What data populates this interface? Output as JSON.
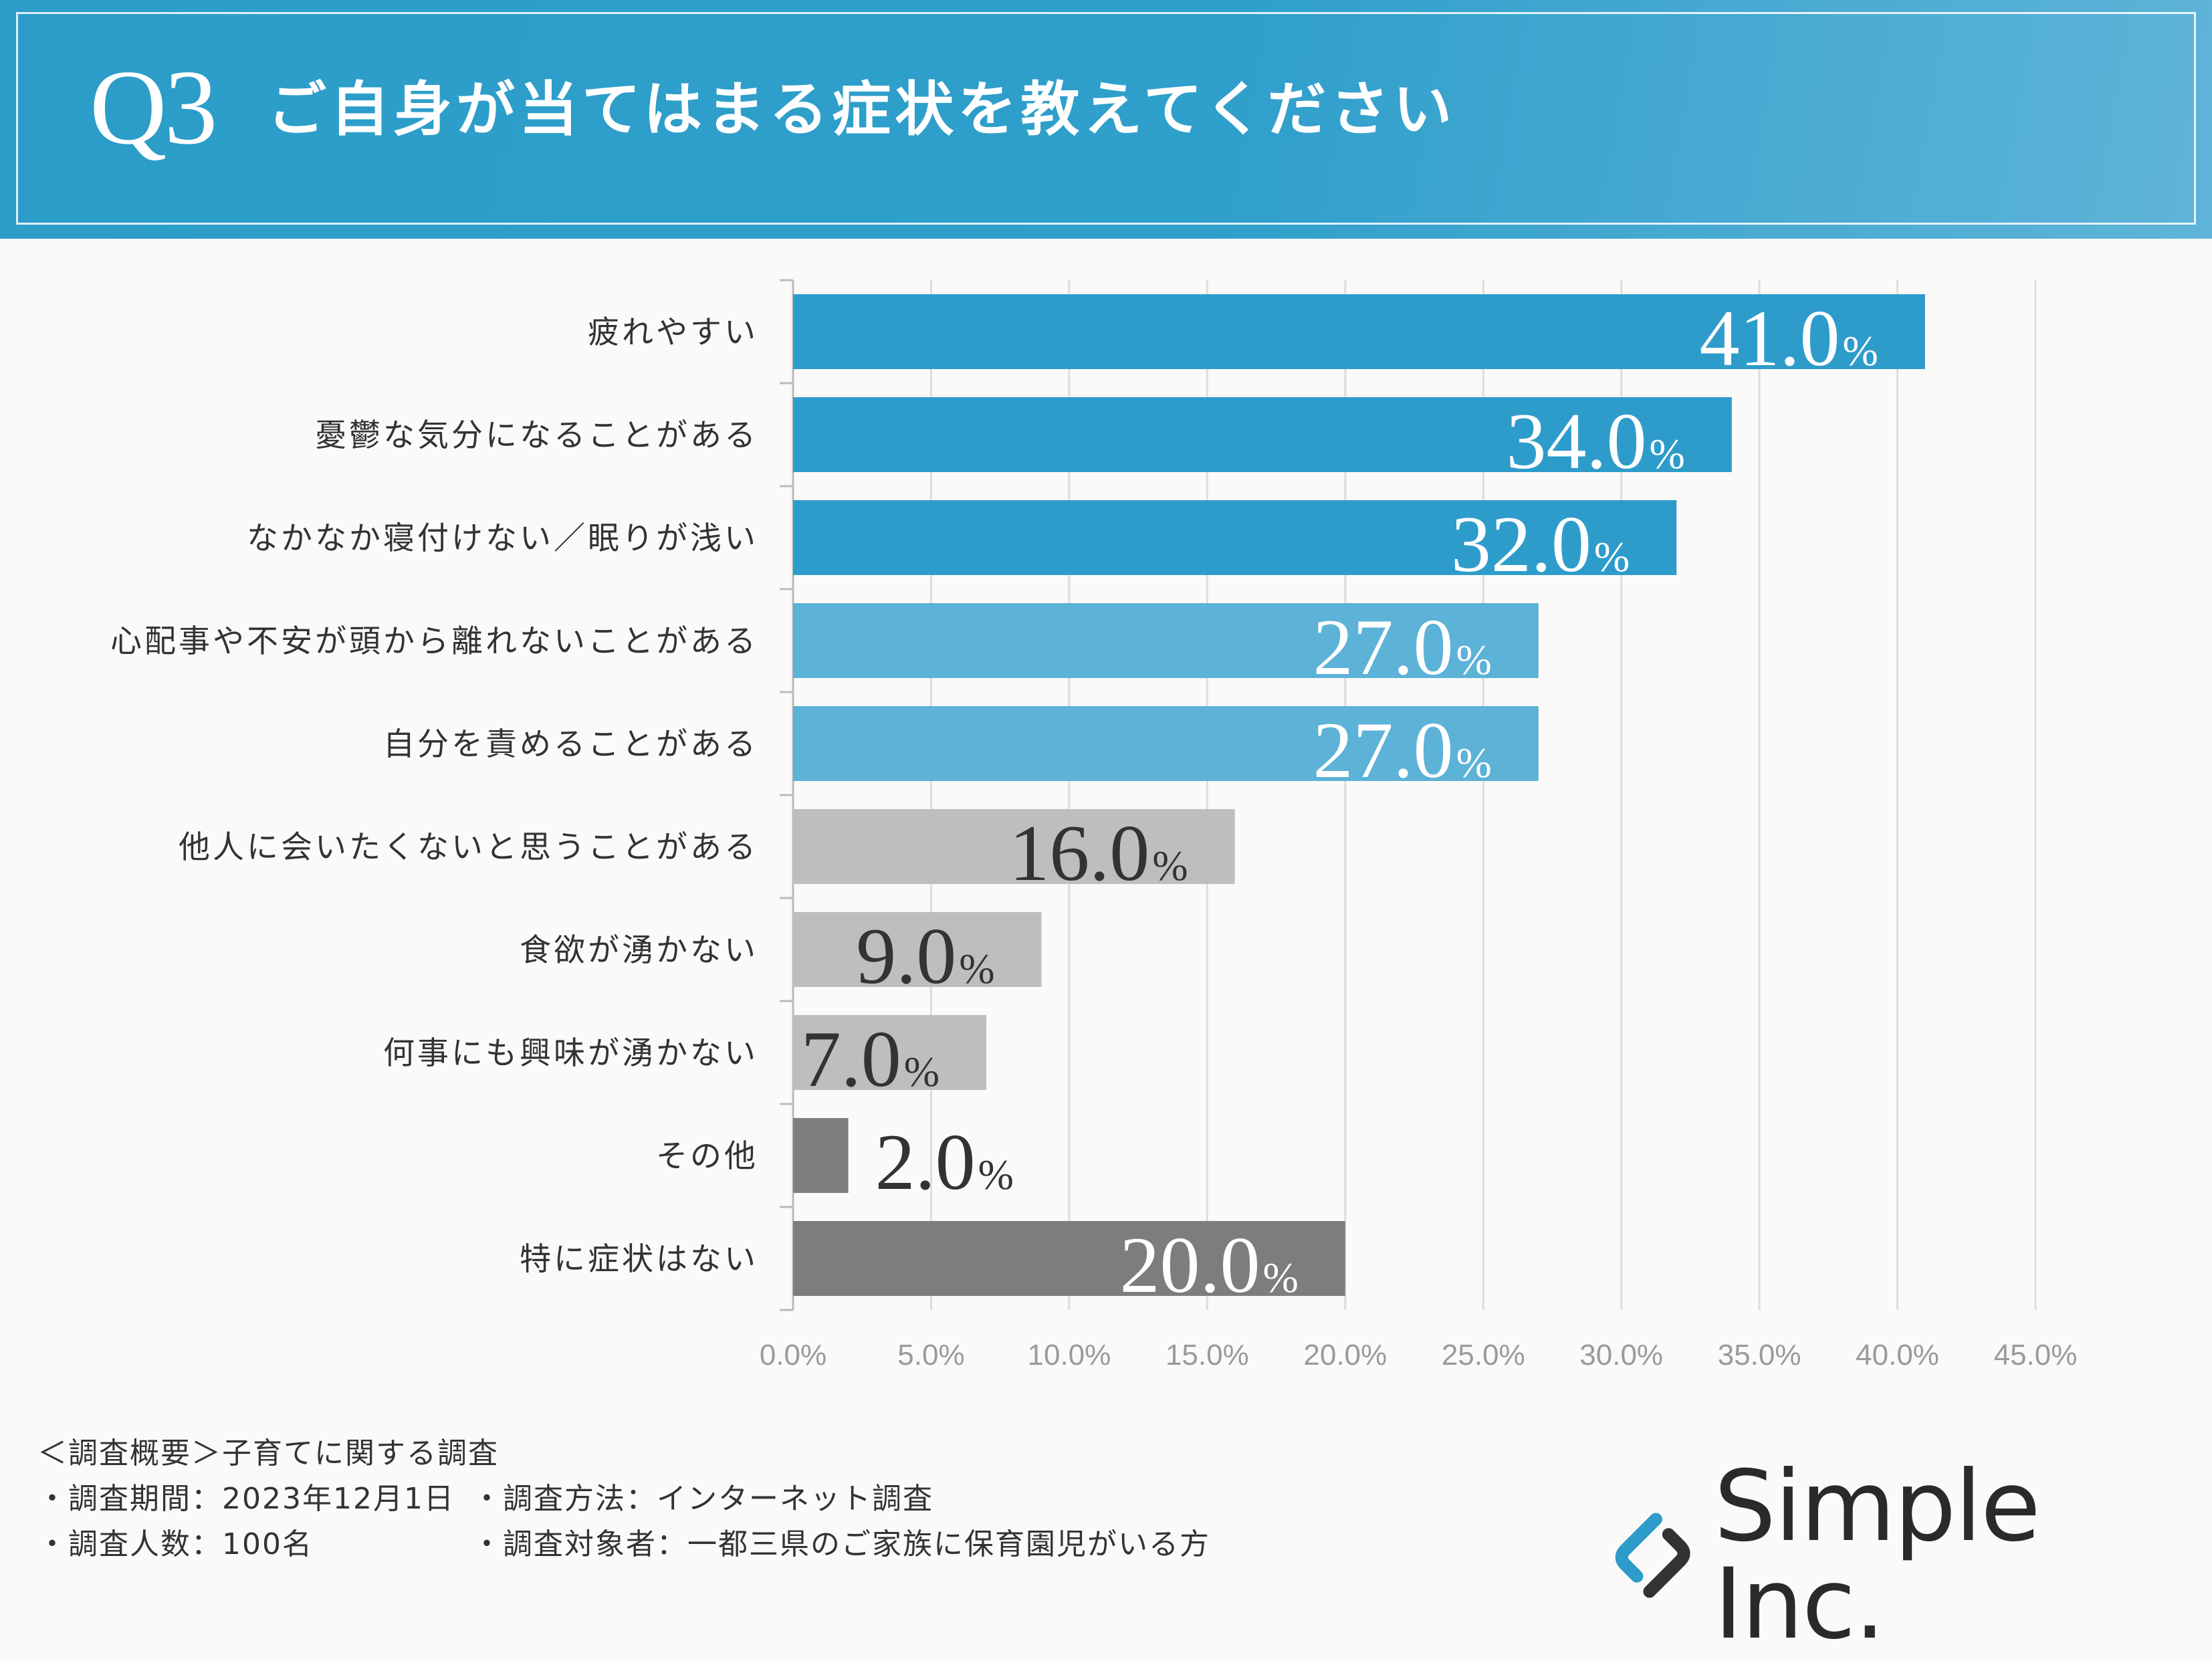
{
  "header": {
    "q_label": "Q3",
    "title": "ご自身が当てはまる症状を教えてください"
  },
  "colors": {
    "header": "#2f9fcb",
    "blue_dark": "#2e9ccb",
    "blue_light": "#5cb2d7",
    "gray_light": "#bebebe",
    "gray_dark": "#7d7d7d"
  },
  "chart_data": {
    "type": "bar",
    "orientation": "horizontal",
    "title": "ご自身が当てはまる症状を教えてください",
    "categories": [
      "疲れやすい",
      "憂鬱な気分になることがある",
      "なかなか寝付けない／眠りが浅い",
      "心配事や不安が頭から離れないことがある",
      "自分を責めることがある",
      "他人に会いたくないと思うことがある",
      "食欲が湧かない",
      "何事にも興味が湧かない",
      "その他",
      "特に症状はない"
    ],
    "values": [
      41.0,
      34.0,
      32.0,
      27.0,
      27.0,
      16.0,
      9.0,
      7.0,
      2.0,
      20.0
    ],
    "value_labels": [
      "41.0",
      "34.0",
      "32.0",
      "27.0",
      "27.0",
      "16.0",
      "9.0",
      "7.0",
      "2.0",
      "20.0"
    ],
    "value_suffix": "%",
    "bar_colors": [
      "#2e9ccb",
      "#2e9ccb",
      "#2e9ccb",
      "#5cb2d7",
      "#5cb2d7",
      "#bebebe",
      "#bebebe",
      "#bebebe",
      "#7d7d7d",
      "#7d7d7d"
    ],
    "label_colors": [
      "#ffffff",
      "#ffffff",
      "#ffffff",
      "#ffffff",
      "#ffffff",
      "#333333",
      "#333333",
      "#333333",
      "#333333",
      "#ffffff"
    ],
    "xlim": [
      0,
      45
    ],
    "ticks": [
      0,
      5,
      10,
      15,
      20,
      25,
      30,
      35,
      40,
      45
    ],
    "tick_labels": [
      "0.0%",
      "5.0%",
      "10.0%",
      "15.0%",
      "20.0%",
      "25.0%",
      "30.0%",
      "35.0%",
      "40.0%",
      "45.0%"
    ],
    "grid": true
  },
  "footer": {
    "line1": "＜調査概要＞子育てに関する調査",
    "period": "・調査期間：2023年12月1日",
    "method": "・調査方法：インターネット調査",
    "count": "・調査人数：100名",
    "target": "・調査対象者：一都三県のご家族に保育園児がいる方"
  },
  "logo": {
    "text": "Simple Inc."
  }
}
